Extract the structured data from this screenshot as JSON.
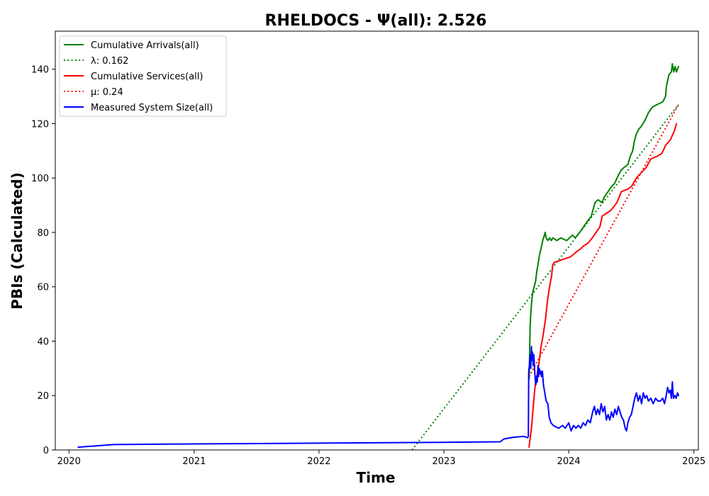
{
  "chart_data": {
    "type": "line",
    "title": "RHELDOCS -  Ψ(all): 2.526",
    "xlabel": "Time",
    "ylabel": "PBIs (Calculated)",
    "xlim": [
      "2019-11-22",
      "2025-01-14"
    ],
    "ylim": [
      0,
      154
    ],
    "x_ticks": [
      "2020",
      "2021",
      "2022",
      "2023",
      "2024",
      "2025"
    ],
    "y_ticks": [
      0,
      20,
      40,
      60,
      80,
      100,
      120,
      140
    ],
    "grid": false,
    "legend_position": "upper-left",
    "series": [
      {
        "name": "Cumulative Arrivals(all)",
        "color": "#008000",
        "style": "solid",
        "points": [
          [
            "2023-09-07",
            26
          ],
          [
            "2023-09-08",
            30
          ],
          [
            "2023-09-09",
            38
          ],
          [
            "2023-09-10",
            45
          ],
          [
            "2023-09-12",
            50
          ],
          [
            "2023-09-15",
            55
          ],
          [
            "2023-09-18",
            58
          ],
          [
            "2023-09-22",
            60
          ],
          [
            "2023-09-26",
            62
          ],
          [
            "2023-09-30",
            66
          ],
          [
            "2023-10-03",
            68
          ],
          [
            "2023-10-08",
            72
          ],
          [
            "2023-10-12",
            74
          ],
          [
            "2023-10-17",
            77
          ],
          [
            "2023-10-22",
            79
          ],
          [
            "2023-10-24",
            80
          ],
          [
            "2023-10-27",
            78
          ],
          [
            "2023-11-01",
            77
          ],
          [
            "2023-11-06",
            78
          ],
          [
            "2023-11-11",
            77
          ],
          [
            "2023-11-16",
            78
          ],
          [
            "2023-11-27",
            77
          ],
          [
            "2023-12-09",
            78
          ],
          [
            "2023-12-26",
            77
          ],
          [
            "2024-01-12",
            79
          ],
          [
            "2024-01-20",
            78
          ],
          [
            "2024-02-02",
            80
          ],
          [
            "2024-02-13",
            82
          ],
          [
            "2024-02-24",
            84
          ],
          [
            "2024-03-07",
            86
          ],
          [
            "2024-03-18",
            91
          ],
          [
            "2024-03-27",
            92
          ],
          [
            "2024-04-07",
            91
          ],
          [
            "2024-04-14",
            93
          ],
          [
            "2024-04-25",
            95
          ],
          [
            "2024-05-06",
            97
          ],
          [
            "2024-05-14",
            98
          ],
          [
            "2024-05-25",
            101
          ],
          [
            "2024-06-03",
            103
          ],
          [
            "2024-06-12",
            104
          ],
          [
            "2024-06-22",
            105
          ],
          [
            "2024-06-29",
            108
          ],
          [
            "2024-07-06",
            110
          ],
          [
            "2024-07-10",
            113
          ],
          [
            "2024-07-16",
            116
          ],
          [
            "2024-07-24",
            118
          ],
          [
            "2024-07-31",
            119
          ],
          [
            "2024-08-10",
            121
          ],
          [
            "2024-08-21",
            124
          ],
          [
            "2024-09-01",
            126
          ],
          [
            "2024-09-15",
            127
          ],
          [
            "2024-10-02",
            128
          ],
          [
            "2024-10-10",
            130
          ],
          [
            "2024-10-13",
            134
          ],
          [
            "2024-10-20",
            138
          ],
          [
            "2024-10-27",
            139
          ],
          [
            "2024-10-30",
            142
          ],
          [
            "2024-11-03",
            139
          ],
          [
            "2024-11-07",
            141
          ],
          [
            "2024-11-11",
            139
          ],
          [
            "2024-11-17",
            141
          ]
        ]
      },
      {
        "name": "λ: 0.162",
        "color": "#008000",
        "style": "dotted",
        "points": [
          [
            "2022-09-30",
            0
          ],
          [
            "2024-11-17",
            127
          ]
        ]
      },
      {
        "name": "Cumulative Services(all)",
        "color": "#ff0000",
        "style": "solid",
        "points": [
          [
            "2023-09-07",
            1
          ],
          [
            "2023-09-10",
            4
          ],
          [
            "2023-09-14",
            8
          ],
          [
            "2023-09-18",
            14
          ],
          [
            "2023-09-22",
            20
          ],
          [
            "2023-09-26",
            25
          ],
          [
            "2023-10-01",
            28
          ],
          [
            "2023-10-06",
            32
          ],
          [
            "2023-10-12",
            38
          ],
          [
            "2023-10-18",
            42
          ],
          [
            "2023-10-25",
            48
          ],
          [
            "2023-10-31",
            55
          ],
          [
            "2023-11-06",
            60
          ],
          [
            "2023-11-12",
            64
          ],
          [
            "2023-11-15",
            68
          ],
          [
            "2023-11-20",
            69
          ],
          [
            "2023-12-02",
            69.5
          ],
          [
            "2023-12-14",
            70
          ],
          [
            "2024-01-06",
            71
          ],
          [
            "2024-01-25",
            73
          ],
          [
            "2024-02-05",
            74
          ],
          [
            "2024-02-13",
            75
          ],
          [
            "2024-02-26",
            76
          ],
          [
            "2024-03-10",
            78
          ],
          [
            "2024-03-21",
            80
          ],
          [
            "2024-04-01",
            82
          ],
          [
            "2024-04-08",
            86
          ],
          [
            "2024-04-20",
            87
          ],
          [
            "2024-05-02",
            88
          ],
          [
            "2024-05-09",
            89
          ],
          [
            "2024-05-21",
            91
          ],
          [
            "2024-06-03",
            95
          ],
          [
            "2024-06-23",
            96
          ],
          [
            "2024-07-03",
            97
          ],
          [
            "2024-07-17",
            100
          ],
          [
            "2024-07-24",
            101
          ],
          [
            "2024-08-08",
            103
          ],
          [
            "2024-08-15",
            104
          ],
          [
            "2024-08-28",
            107
          ],
          [
            "2024-09-15",
            108
          ],
          [
            "2024-09-29",
            109
          ],
          [
            "2024-10-03",
            110
          ],
          [
            "2024-10-10",
            112
          ],
          [
            "2024-10-17",
            113
          ],
          [
            "2024-10-24",
            114
          ],
          [
            "2024-10-31",
            116
          ],
          [
            "2024-11-04",
            117
          ],
          [
            "2024-11-11",
            120
          ]
        ]
      },
      {
        "name": "μ: 0.24",
        "color": "#ff0000",
        "style": "dotted",
        "points": [
          [
            "2023-09-07",
            27
          ],
          [
            "2024-11-17",
            127
          ]
        ]
      },
      {
        "name": "Measured System Size(all)",
        "color": "#0000ff",
        "style": "solid",
        "points": [
          [
            "2020-01-28",
            1
          ],
          [
            "2020-05-11",
            2
          ],
          [
            "2021-01-01",
            2.2
          ],
          [
            "2022-01-01",
            2.5
          ],
          [
            "2023-01-01",
            2.8
          ],
          [
            "2023-06-15",
            3
          ],
          [
            "2023-06-25",
            4
          ],
          [
            "2023-07-20",
            4.6
          ],
          [
            "2023-08-22",
            5
          ],
          [
            "2023-09-03",
            4.5
          ],
          [
            "2023-09-05",
            5
          ],
          [
            "2023-09-06",
            29
          ],
          [
            "2023-09-08",
            31
          ],
          [
            "2023-09-09",
            33
          ],
          [
            "2023-09-11",
            35
          ],
          [
            "2023-09-12",
            30
          ],
          [
            "2023-09-14",
            38
          ],
          [
            "2023-09-15",
            33
          ],
          [
            "2023-09-17",
            36
          ],
          [
            "2023-09-19",
            31
          ],
          [
            "2023-09-21",
            35
          ],
          [
            "2023-09-23",
            30
          ],
          [
            "2023-09-25",
            26
          ],
          [
            "2023-09-27",
            24
          ],
          [
            "2023-09-29",
            27
          ],
          [
            "2023-10-01",
            25
          ],
          [
            "2023-10-03",
            31
          ],
          [
            "2023-10-05",
            27
          ],
          [
            "2023-10-07",
            30
          ],
          [
            "2023-10-09",
            28
          ],
          [
            "2023-10-11",
            29
          ],
          [
            "2023-10-13",
            27
          ],
          [
            "2023-10-16",
            29
          ],
          [
            "2023-10-19",
            24
          ],
          [
            "2023-10-23",
            21
          ],
          [
            "2023-10-27",
            18
          ],
          [
            "2023-11-01",
            17
          ],
          [
            "2023-11-05",
            12
          ],
          [
            "2023-11-10",
            10
          ],
          [
            "2023-11-17",
            9
          ],
          [
            "2023-11-24",
            8.5
          ],
          [
            "2023-12-03",
            8
          ],
          [
            "2023-12-14",
            9
          ],
          [
            "2023-12-22",
            8
          ],
          [
            "2024-01-01",
            10
          ],
          [
            "2024-01-08",
            7
          ],
          [
            "2024-01-15",
            9
          ],
          [
            "2024-01-22",
            8
          ],
          [
            "2024-01-29",
            9
          ],
          [
            "2024-02-05",
            8
          ],
          [
            "2024-02-12",
            10
          ],
          [
            "2024-02-19",
            9
          ],
          [
            "2024-02-26",
            11
          ],
          [
            "2024-03-04",
            10
          ],
          [
            "2024-03-11",
            14
          ],
          [
            "2024-03-16",
            16
          ],
          [
            "2024-03-21",
            13
          ],
          [
            "2024-03-26",
            15
          ],
          [
            "2024-03-31",
            13
          ],
          [
            "2024-04-05",
            17
          ],
          [
            "2024-04-10",
            14
          ],
          [
            "2024-04-15",
            16
          ],
          [
            "2024-04-20",
            11
          ],
          [
            "2024-04-25",
            13
          ],
          [
            "2024-04-30",
            11
          ],
          [
            "2024-05-05",
            14
          ],
          [
            "2024-05-10",
            12
          ],
          [
            "2024-05-15",
            15
          ],
          [
            "2024-05-20",
            13
          ],
          [
            "2024-05-25",
            16
          ],
          [
            "2024-05-30",
            14
          ],
          [
            "2024-06-04",
            12
          ],
          [
            "2024-06-09",
            11
          ],
          [
            "2024-06-14",
            8
          ],
          [
            "2024-06-18",
            7
          ],
          [
            "2024-06-22",
            10
          ],
          [
            "2024-06-27",
            12
          ],
          [
            "2024-07-02",
            13
          ],
          [
            "2024-07-07",
            16
          ],
          [
            "2024-07-12",
            19
          ],
          [
            "2024-07-17",
            21
          ],
          [
            "2024-07-22",
            18
          ],
          [
            "2024-07-27",
            20
          ],
          [
            "2024-08-01",
            17
          ],
          [
            "2024-08-06",
            21
          ],
          [
            "2024-08-11",
            19
          ],
          [
            "2024-08-16",
            20
          ],
          [
            "2024-08-21",
            18
          ],
          [
            "2024-08-28",
            19
          ],
          [
            "2024-09-04",
            17
          ],
          [
            "2024-09-11",
            19
          ],
          [
            "2024-09-18",
            18
          ],
          [
            "2024-09-25",
            18
          ],
          [
            "2024-10-02",
            19
          ],
          [
            "2024-10-07",
            17
          ],
          [
            "2024-10-12",
            20
          ],
          [
            "2024-10-16",
            23
          ],
          [
            "2024-10-20",
            21
          ],
          [
            "2024-10-24",
            22
          ],
          [
            "2024-10-27",
            19
          ],
          [
            "2024-10-30",
            25
          ],
          [
            "2024-11-02",
            19
          ],
          [
            "2024-11-06",
            20
          ],
          [
            "2024-11-10",
            19
          ],
          [
            "2024-11-14",
            21
          ],
          [
            "2024-11-17",
            20
          ]
        ]
      }
    ]
  }
}
